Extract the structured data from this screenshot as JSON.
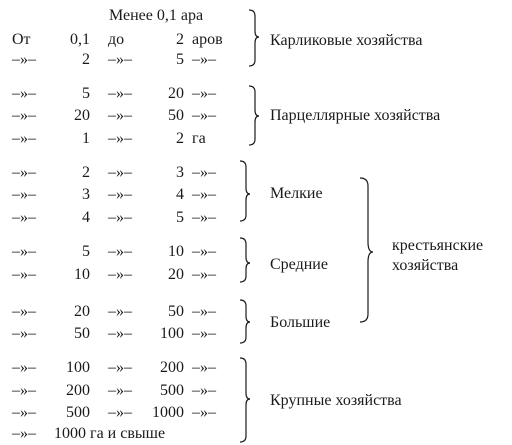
{
  "table": {
    "header_top": "Менее 0,1 ара",
    "rows": [
      {
        "c1": "От",
        "c2": "0,1",
        "c3": "до",
        "c4": "2",
        "c5": "аров"
      },
      {
        "c1": "–»–",
        "c2": "2",
        "c3": "–»–",
        "c4": "5",
        "c5": "–»–"
      },
      {
        "c1": "–»–",
        "c2": "5",
        "c3": "–»–",
        "c4": "20",
        "c5": "–»–"
      },
      {
        "c1": "–»–",
        "c2": "20",
        "c3": "–»–",
        "c4": "50",
        "c5": "–»–"
      },
      {
        "c1": "–»–",
        "c2": "1",
        "c3": "–»–",
        "c4": "2",
        "c5": "га"
      },
      {
        "c1": "–»–",
        "c2": "2",
        "c3": "–»–",
        "c4": "3",
        "c5": "–»–"
      },
      {
        "c1": "–»–",
        "c2": "3",
        "c3": "–»–",
        "c4": "4",
        "c5": "–»–"
      },
      {
        "c1": "–»–",
        "c2": "4",
        "c3": "–»–",
        "c4": "5",
        "c5": "–»–"
      },
      {
        "c1": "–»–",
        "c2": "5",
        "c3": "–»–",
        "c4": "10",
        "c5": "–»–"
      },
      {
        "c1": "–»–",
        "c2": "10",
        "c3": "–»–",
        "c4": "20",
        "c5": "–»–"
      },
      {
        "c1": "–»–",
        "c2": "20",
        "c3": "–»–",
        "c4": "50",
        "c5": "–»–"
      },
      {
        "c1": "–»–",
        "c2": "50",
        "c3": "–»–",
        "c4": "100",
        "c5": "–»–"
      },
      {
        "c1": "–»–",
        "c2": "100",
        "c3": "–»–",
        "c4": "200",
        "c5": "–»–"
      },
      {
        "c1": "–»–",
        "c2": "200",
        "c3": "–»–",
        "c4": "500",
        "c5": "–»–"
      },
      {
        "c1": "–»–",
        "c2": "500",
        "c3": "–»–",
        "c4": "1000",
        "c5": "–»–"
      }
    ],
    "last_row": {
      "c1": "–»–",
      "text": "1000 га и свыше"
    }
  },
  "groups": {
    "dwarf": "Карликовые хозяйства",
    "parcel": "Парцеллярные хозяйства",
    "small": "Мелкие",
    "medium": "Средние",
    "large": "Большие",
    "peasant_line1": "крестьянские",
    "peasant_line2": "хозяйства",
    "big": "Крупные хозяйства"
  }
}
